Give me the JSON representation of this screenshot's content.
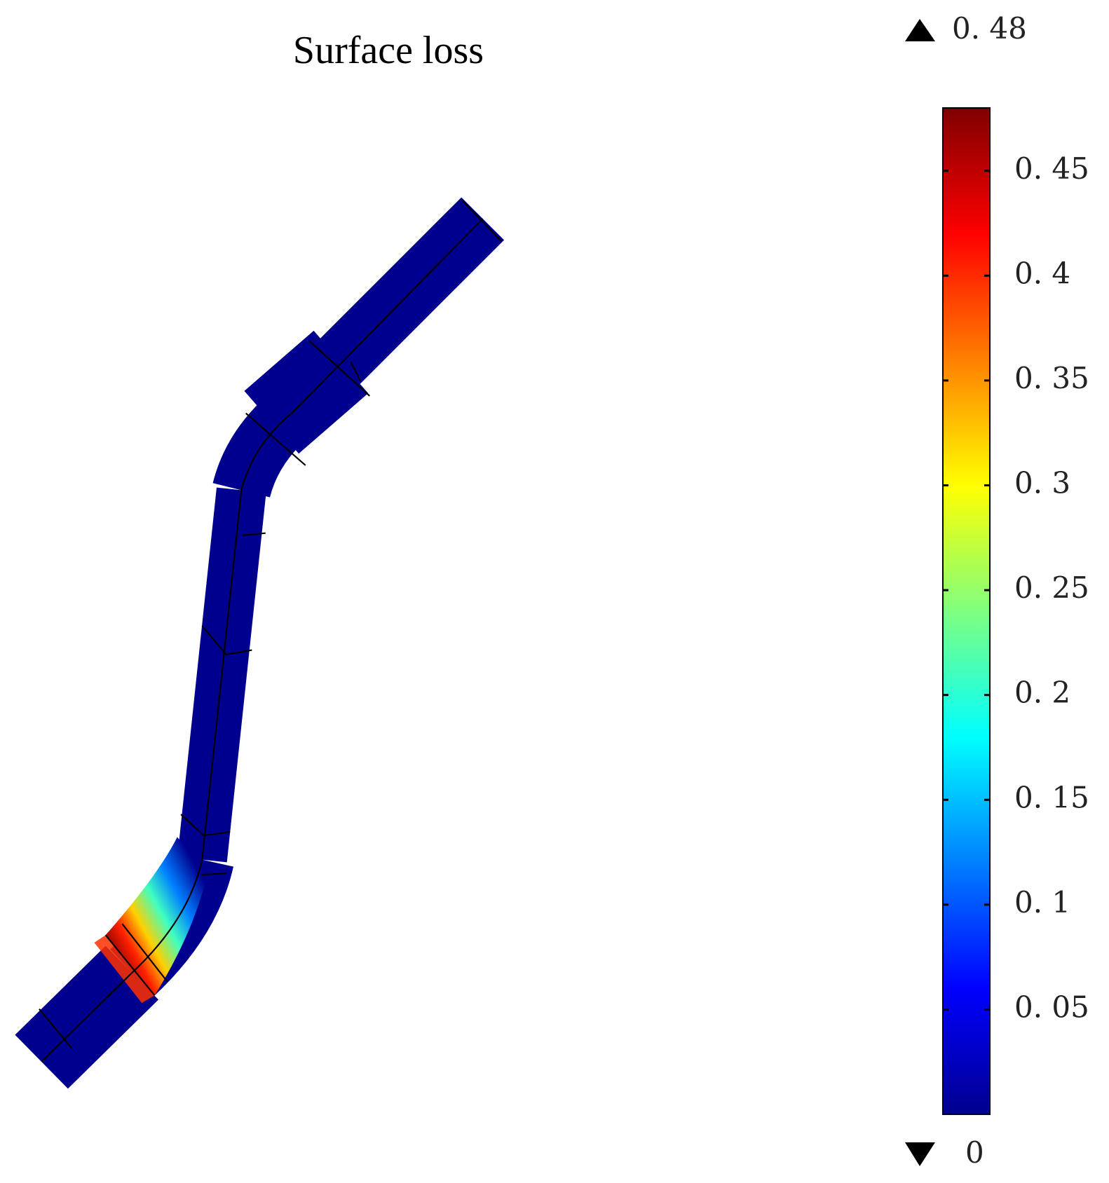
{
  "chart_data": {
    "type": "surface",
    "title": "Surface loss",
    "colormap": "jet",
    "zlim": [
      0,
      {
        "value": 0.48,
        "label": "0. 48"
      }
    ],
    "zticks": [
      {
        "value": 0.05,
        "label": "0. 05"
      },
      {
        "value": 0.1,
        "label": "0. 1"
      },
      {
        "value": 0.15,
        "label": "0. 15"
      },
      {
        "value": 0.2,
        "label": "0. 2"
      },
      {
        "value": 0.25,
        "label": "0. 25"
      },
      {
        "value": 0.3,
        "label": "0. 3"
      },
      {
        "value": 0.35,
        "label": "0. 35"
      },
      {
        "value": 0.4,
        "label": "0. 4"
      },
      {
        "value": 0.45,
        "label": "0. 45"
      }
    ]
  }
}
